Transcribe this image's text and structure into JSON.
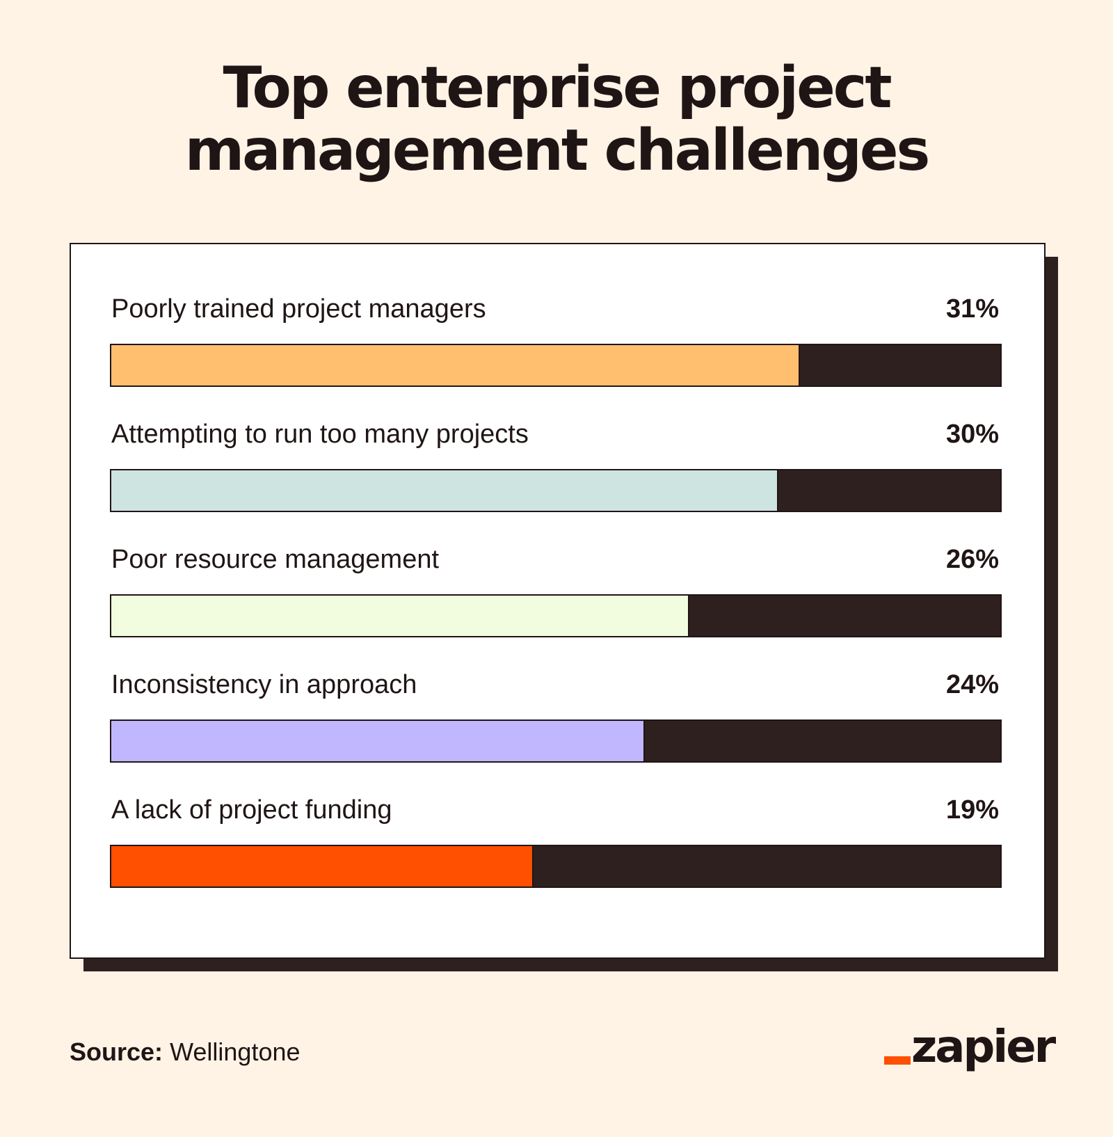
{
  "chart_data": {
    "type": "bar",
    "orientation": "horizontal",
    "title_lines": [
      "Top enterprise project",
      "management challenges"
    ],
    "categories": [
      "Poorly trained project managers",
      "Attempting to run too many projects",
      "Poor resource management",
      "Inconsistency in approach",
      "A lack of project funding"
    ],
    "values": [
      31,
      30,
      26,
      24,
      19
    ],
    "value_labels": [
      "31%",
      "30%",
      "26%",
      "24%",
      "19%"
    ],
    "bar_colors": [
      "#ffbf6e",
      "#cde4e1",
      "#f2fcdf",
      "#c1b7ff",
      "#ff4f00"
    ],
    "track_color": "#2f2020",
    "xlim": [
      0,
      40
    ],
    "grid": false,
    "legend": "none"
  },
  "footer": {
    "source_label": "Source:",
    "source_value": "Wellingtone"
  },
  "logo": {
    "text": "zapier",
    "accent_color": "#ff4f00"
  }
}
